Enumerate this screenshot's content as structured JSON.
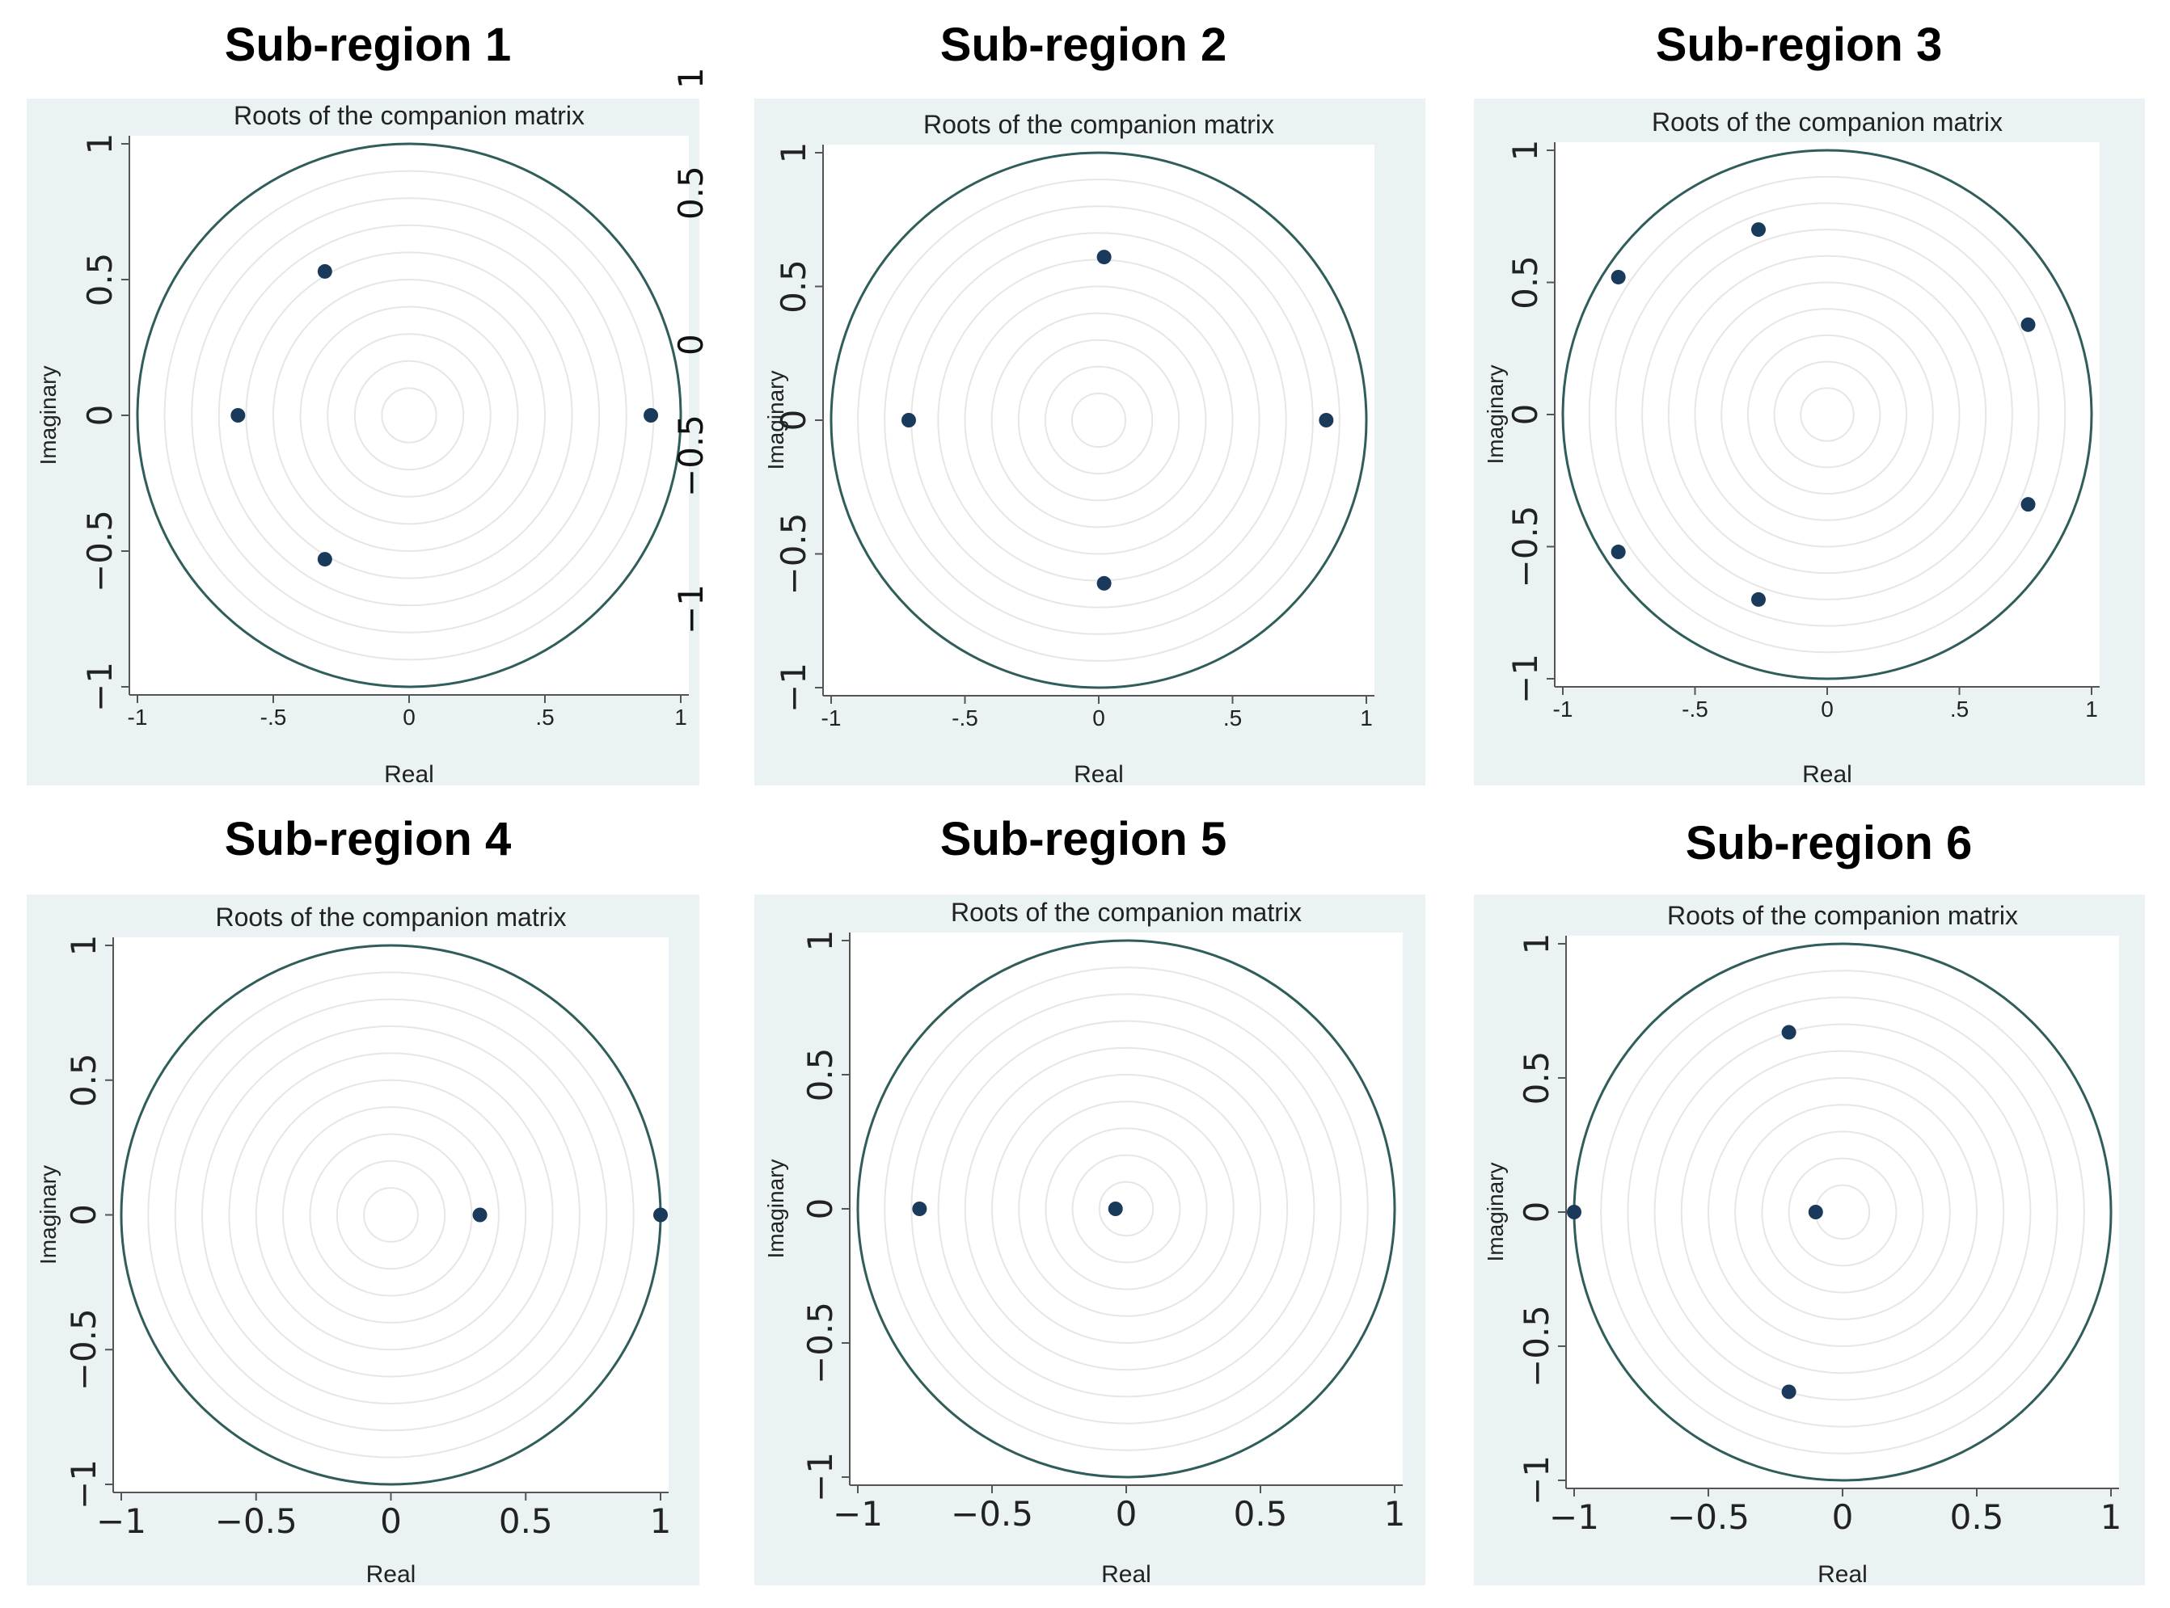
{
  "chart_data": [
    {
      "type": "scatter",
      "region_title": "Sub-region 1",
      "title": "Roots of the companion matrix",
      "xlabel": "Real",
      "ylabel": "Imaginary",
      "xlim": [
        -1,
        1
      ],
      "ylim": [
        -1,
        1
      ],
      "xticks": [
        "-1",
        "-.5",
        "0",
        ".5",
        "1"
      ],
      "yticks": [
        "1",
        "0.5",
        "0",
        "−0.5",
        "−1"
      ],
      "unit_circle": true,
      "grid_circles": true,
      "points": [
        {
          "x": -0.63,
          "y": 0.0
        },
        {
          "x": -0.31,
          "y": 0.53
        },
        {
          "x": -0.31,
          "y": -0.53
        },
        {
          "x": 0.89,
          "y": 0.0
        }
      ]
    },
    {
      "type": "scatter",
      "region_title": "Sub-region 2",
      "title": "Roots of the companion matrix",
      "xlabel": "Real",
      "ylabel": "Imaginary",
      "xlim": [
        -1,
        1
      ],
      "ylim": [
        -1,
        1
      ],
      "xticks": [
        "-1",
        "-.5",
        "0",
        ".5",
        "1"
      ],
      "yticks": [
        "1",
        "0.5",
        "0",
        "−0.5",
        "−1"
      ],
      "unit_circle": true,
      "grid_circles": true,
      "points": [
        {
          "x": -0.71,
          "y": 0.0
        },
        {
          "x": 0.02,
          "y": 0.61
        },
        {
          "x": 0.02,
          "y": -0.61
        },
        {
          "x": 0.85,
          "y": 0.0
        }
      ]
    },
    {
      "type": "scatter",
      "region_title": "Sub-region 3",
      "title": "Roots of the companion matrix",
      "xlabel": "Real",
      "ylabel": "Imaginary",
      "xlim": [
        -1,
        1
      ],
      "ylim": [
        -1,
        1
      ],
      "xticks": [
        "-1",
        "-.5",
        "0",
        ".5",
        "1"
      ],
      "yticks": [
        "1",
        "0.5",
        "0",
        "−0.5",
        "−1"
      ],
      "unit_circle": true,
      "grid_circles": true,
      "points": [
        {
          "x": -0.79,
          "y": 0.52
        },
        {
          "x": -0.79,
          "y": -0.52
        },
        {
          "x": -0.26,
          "y": 0.7
        },
        {
          "x": -0.26,
          "y": -0.7
        },
        {
          "x": 0.76,
          "y": 0.34
        },
        {
          "x": 0.76,
          "y": -0.34
        }
      ]
    },
    {
      "type": "scatter",
      "region_title": "Sub-region 4",
      "title": "Roots of the companion matrix",
      "xlabel": "Real",
      "ylabel": "Imaginary",
      "xlim": [
        -1,
        1
      ],
      "ylim": [
        -1,
        1
      ],
      "xticks": [
        "−1",
        "−0.5",
        "0",
        "0.5",
        "1"
      ],
      "yticks": [
        "1",
        "0.5",
        "0",
        "−0.5",
        "−1"
      ],
      "unit_circle": true,
      "grid_circles": true,
      "points": [
        {
          "x": 0.33,
          "y": 0.0
        },
        {
          "x": 1.0,
          "y": 0.0
        }
      ]
    },
    {
      "type": "scatter",
      "region_title": "Sub-region 5",
      "title": "Roots of the companion matrix",
      "xlabel": "Real",
      "ylabel": "Imaginary",
      "xlim": [
        -1,
        1
      ],
      "ylim": [
        -1,
        1
      ],
      "xticks": [
        "−1",
        "−0.5",
        "0",
        "0.5",
        "1"
      ],
      "yticks": [
        "1",
        "0.5",
        "0",
        "−0.5",
        "−1"
      ],
      "unit_circle": true,
      "grid_circles": true,
      "points": [
        {
          "x": -0.77,
          "y": 0.0
        },
        {
          "x": -0.04,
          "y": 0.0
        }
      ]
    },
    {
      "type": "scatter",
      "region_title": "Sub-region 6",
      "title": "Roots of the companion matrix",
      "xlabel": "Real",
      "ylabel": "Imaginary",
      "xlim": [
        -1,
        1
      ],
      "ylim": [
        -1,
        1
      ],
      "xticks": [
        "−1",
        "−0.5",
        "0",
        "0.5",
        "1"
      ],
      "yticks": [
        "1",
        "0.5",
        "0",
        "−0.5",
        "−1"
      ],
      "unit_circle": true,
      "grid_circles": true,
      "points": [
        {
          "x": -1.0,
          "y": 0.0
        },
        {
          "x": -0.2,
          "y": 0.67
        },
        {
          "x": -0.2,
          "y": -0.67
        },
        {
          "x": -0.1,
          "y": 0.0
        }
      ]
    }
  ],
  "stray_axis_labels": [
    "1",
    "0.5",
    "0",
    "−0.5",
    "−1"
  ],
  "colors": {
    "panel_background": "#eaf2f3",
    "plot_background": "#ffffff",
    "unit_circle": "#2f5d5a",
    "grid_circle": "#e6e6e6",
    "point": "#1a3a5c",
    "axis": "#555555"
  }
}
